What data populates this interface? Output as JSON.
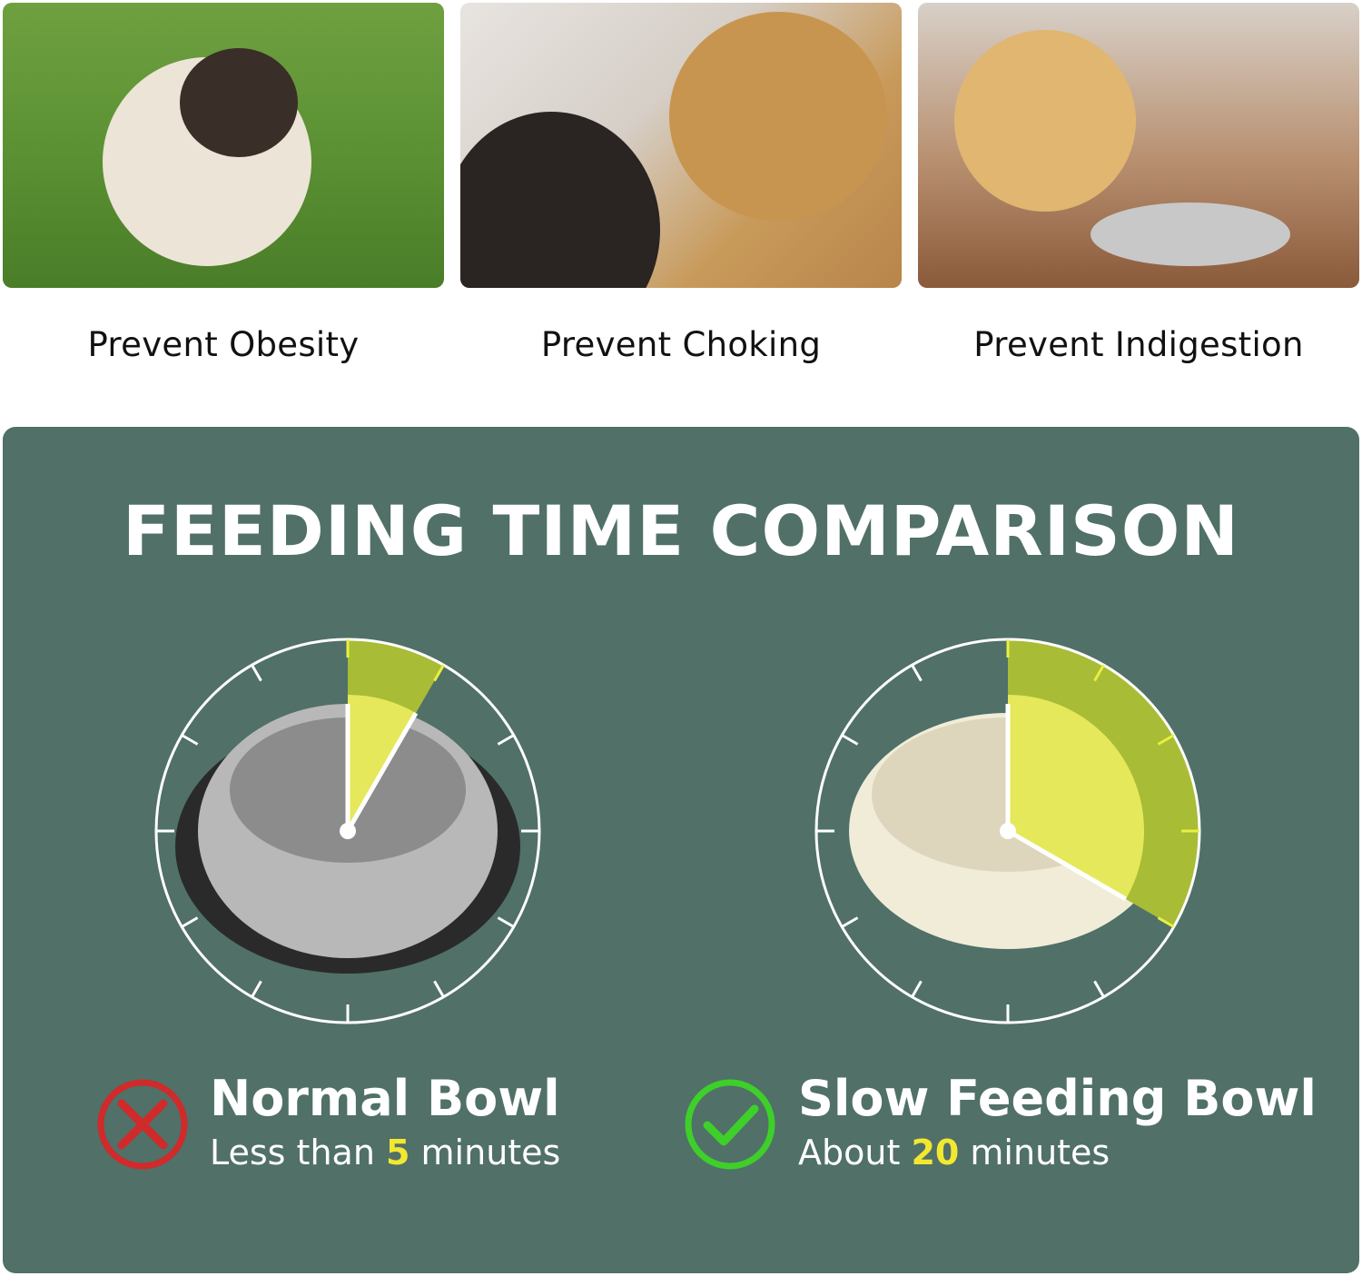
{
  "benefits": [
    {
      "caption": "Prevent Obesity",
      "image": "pug-on-grass"
    },
    {
      "caption": "Prevent Choking",
      "image": "golden-retriever-mouth-check"
    },
    {
      "caption": "Prevent Indigestion",
      "image": "labrador-lying-by-bowl"
    }
  ],
  "comparison": {
    "title": "FEEDING TIME COMPARISON",
    "clock_scale_minutes": 60,
    "colors": {
      "panel": "#507068",
      "wedge_outer": "#a8bc36",
      "wedge_inner": "#f0f060",
      "highlight": "#f2e830",
      "cross": "#d02a2a",
      "check": "#3ecf2a"
    },
    "items": [
      {
        "name": "Normal Bowl",
        "prefix": "Less than ",
        "value": "5",
        "suffix": " minutes",
        "minutes": 5,
        "status_icon": "red-cross-icon"
      },
      {
        "name": "Slow Feeding Bowl",
        "prefix": "About ",
        "value": "20",
        "suffix": " minutes",
        "minutes": 20,
        "status_icon": "green-check-icon"
      }
    ]
  }
}
